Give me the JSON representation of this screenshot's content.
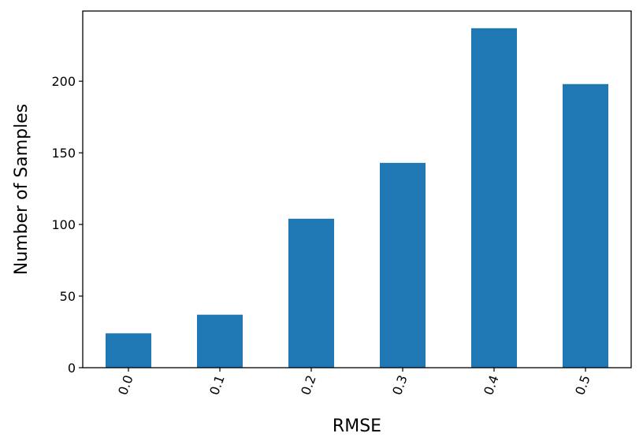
{
  "chart_data": {
    "type": "bar",
    "categories": [
      "0.0",
      "0.1",
      "0.2",
      "0.3",
      "0.4",
      "0.5"
    ],
    "values": [
      24,
      37,
      104,
      143,
      237,
      198
    ],
    "xlabel": "RMSE",
    "ylabel": "Number of Samples",
    "ylim": [
      0,
      249
    ],
    "yticks": [
      0,
      50,
      100,
      150,
      200
    ],
    "bar_color": "#1f77b4",
    "grid": false,
    "legend": "none",
    "xtick_rotation": "rotated"
  }
}
